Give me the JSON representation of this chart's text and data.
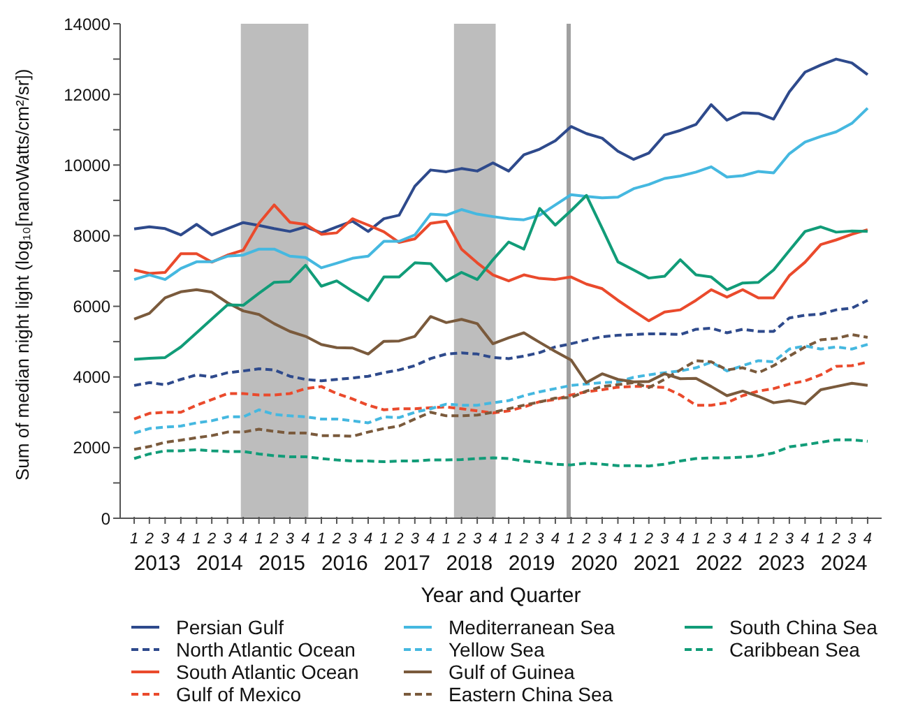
{
  "chart_data": {
    "type": "line",
    "xlabel": "Year and Quarter",
    "ylabel": "Sum of median night light (log₁₀[nanoWatts/cm²/sr])",
    "x": [
      "2013-02-15",
      "2013-05-15",
      "2013-08-15",
      "2013-11-15",
      "2014-02-15",
      "2014-05-15",
      "2014-08-15",
      "2014-11-15",
      "2015-02-15",
      "2015-05-15",
      "2015-08-15",
      "2015-11-15",
      "2016-02-15",
      "2016-05-15",
      "2016-08-15",
      "2016-11-15",
      "2017-02-15",
      "2017-05-15",
      "2017-08-15",
      "2017-11-15",
      "2018-02-15",
      "2018-05-15",
      "2018-08-15",
      "2018-11-15",
      "2019-02-15",
      "2019-05-15",
      "2019-08-15",
      "2019-11-15",
      "2020-02-15",
      "2020-05-15",
      "2020-08-15",
      "2020-11-15",
      "2021-02-15",
      "2021-05-15",
      "2021-08-15",
      "2021-11-15",
      "2022-02-15",
      "2022-05-15",
      "2022-08-15",
      "2022-11-15",
      "2023-02-15",
      "2023-05-15",
      "2023-08-15",
      "2023-11-15",
      "2024-02-15",
      "2024-05-15",
      "2024-08-15",
      "2024-11-15"
    ],
    "xlim": [
      "2012-11-25",
      "2025-02-05"
    ],
    "xticks": [
      {
        "value": "2013-02-15",
        "label": "1"
      },
      {
        "value": "2013-05-15",
        "label": "2"
      },
      {
        "value": "2013-08-15",
        "label": "3"
      },
      {
        "value": "2013-11-15",
        "label": "4"
      },
      {
        "value": "2014-02-15",
        "label": "1"
      },
      {
        "value": "2014-05-15",
        "label": "2"
      },
      {
        "value": "2014-08-15",
        "label": "3"
      },
      {
        "value": "2014-11-15",
        "label": "4"
      },
      {
        "value": "2015-02-15",
        "label": "1"
      },
      {
        "value": "2015-05-15",
        "label": "2"
      },
      {
        "value": "2015-08-15",
        "label": "3"
      },
      {
        "value": "2015-11-15",
        "label": "4"
      },
      {
        "value": "2016-02-15",
        "label": "1"
      },
      {
        "value": "2016-05-15",
        "label": "2"
      },
      {
        "value": "2016-08-15",
        "label": "3"
      },
      {
        "value": "2016-11-15",
        "label": "4"
      },
      {
        "value": "2017-02-15",
        "label": "1"
      },
      {
        "value": "2017-05-15",
        "label": "2"
      },
      {
        "value": "2017-08-15",
        "label": "3"
      },
      {
        "value": "2017-11-15",
        "label": "4"
      },
      {
        "value": "2018-02-15",
        "label": "1"
      },
      {
        "value": "2018-05-15",
        "label": "2"
      },
      {
        "value": "2018-08-15",
        "label": "3"
      },
      {
        "value": "2018-11-15",
        "label": "4"
      },
      {
        "value": "2019-02-15",
        "label": "1"
      },
      {
        "value": "2019-05-15",
        "label": "2"
      },
      {
        "value": "2019-08-15",
        "label": "3"
      },
      {
        "value": "2019-11-15",
        "label": "4"
      },
      {
        "value": "2020-02-15",
        "label": "1"
      },
      {
        "value": "2020-05-15",
        "label": "2"
      },
      {
        "value": "2020-08-15",
        "label": "3"
      },
      {
        "value": "2020-11-15",
        "label": "4"
      },
      {
        "value": "2021-02-15",
        "label": "1"
      },
      {
        "value": "2021-05-15",
        "label": "2"
      },
      {
        "value": "2021-08-15",
        "label": "3"
      },
      {
        "value": "2021-11-15",
        "label": "4"
      },
      {
        "value": "2022-02-15",
        "label": "1"
      },
      {
        "value": "2022-05-15",
        "label": "2"
      },
      {
        "value": "2022-08-15",
        "label": "3"
      },
      {
        "value": "2022-11-15",
        "label": "4"
      },
      {
        "value": "2023-02-15",
        "label": "1"
      },
      {
        "value": "2023-05-15",
        "label": "2"
      },
      {
        "value": "2023-08-15",
        "label": "3"
      },
      {
        "value": "2023-11-15",
        "label": "4"
      },
      {
        "value": "2024-02-15",
        "label": "1"
      },
      {
        "value": "2024-05-15",
        "label": "2"
      },
      {
        "value": "2024-08-15",
        "label": "3"
      },
      {
        "value": "2024-11-15",
        "label": "4"
      }
    ],
    "annotations": [
      "2013",
      "2014",
      "2015",
      "2016",
      "2017",
      "2018",
      "2019",
      "2020",
      "2021",
      "2022",
      "2023",
      "2024"
    ],
    "ylim": [
      0,
      14000
    ],
    "yticks": [
      0,
      {
        "value": 1000,
        "label": null
      },
      2000,
      {
        "value": 3000,
        "label": null
      },
      4000,
      {
        "value": 5000,
        "label": null
      },
      6000,
      {
        "value": 7000,
        "label": null
      },
      8000,
      {
        "value": 9000,
        "label": null
      },
      10000,
      {
        "value": 11000,
        "label": null
      },
      12000,
      {
        "value": 13000,
        "label": null
      },
      14000
    ],
    "bands": [
      {
        "axis": "x",
        "from": "2014-11-01",
        "to": "2015-12-01",
        "color": "#bdbdbd"
      },
      {
        "axis": "x",
        "from": "2018-04-01",
        "to": "2018-12-01",
        "color": "#bdbdbd"
      }
    ],
    "ref_lines": [
      {
        "axis": "x",
        "value": "2020-02-01",
        "color": "#a0a0a0"
      }
    ],
    "legend": "bottom",
    "series": [
      {
        "name": "Persian Gulf",
        "color": "#2e4a8c",
        "line_style": "solid",
        "values": [
          8190,
          8250,
          8200,
          8020,
          8320,
          8020,
          8200,
          8370,
          8290,
          8200,
          8120,
          8250,
          8080,
          8250,
          8410,
          8120,
          8480,
          8580,
          9400,
          9860,
          9810,
          9900,
          9830,
          10060,
          9830,
          10290,
          10450,
          10690,
          11090,
          10890,
          10760,
          10390,
          10160,
          10340,
          10850,
          10980,
          11150,
          11710,
          11270,
          11480,
          11460,
          11300,
          12070,
          12630,
          12830,
          13000,
          12890,
          12560
        ]
      },
      {
        "name": "North Atlantic Ocean",
        "color": "#2e4a8c",
        "line_style": "dashed",
        "values": [
          3760,
          3840,
          3780,
          3930,
          4060,
          4000,
          4120,
          4170,
          4230,
          4200,
          4020,
          3930,
          3890,
          3930,
          3970,
          4020,
          4120,
          4200,
          4320,
          4520,
          4650,
          4680,
          4650,
          4550,
          4520,
          4590,
          4690,
          4850,
          4940,
          5050,
          5140,
          5180,
          5200,
          5220,
          5220,
          5200,
          5350,
          5380,
          5250,
          5350,
          5290,
          5290,
          5670,
          5750,
          5780,
          5900,
          5950,
          6170
        ]
      },
      {
        "name": "South Atlantic Ocean",
        "color": "#ea4a2c",
        "line_style": "solid",
        "values": [
          7030,
          6930,
          6960,
          7490,
          7490,
          7250,
          7450,
          7590,
          8350,
          8870,
          8380,
          8320,
          8040,
          8080,
          8480,
          8300,
          8110,
          7810,
          7910,
          8350,
          8410,
          7620,
          7230,
          6890,
          6720,
          6890,
          6790,
          6760,
          6830,
          6630,
          6500,
          6170,
          5870,
          5590,
          5840,
          5900,
          6170,
          6470,
          6260,
          6470,
          6240,
          6240,
          6870,
          7250,
          7750,
          7880,
          8040,
          8170
        ]
      },
      {
        "name": "Gulf of Mexico",
        "color": "#ea4a2c",
        "line_style": "dashed",
        "values": [
          2810,
          2970,
          3000,
          3000,
          3200,
          3360,
          3530,
          3530,
          3490,
          3490,
          3530,
          3670,
          3730,
          3530,
          3380,
          3200,
          3070,
          3100,
          3100,
          3130,
          3150,
          3100,
          3040,
          2980,
          3040,
          3150,
          3300,
          3360,
          3490,
          3580,
          3640,
          3710,
          3730,
          3730,
          3700,
          3490,
          3200,
          3200,
          3270,
          3470,
          3600,
          3670,
          3800,
          3890,
          4060,
          4300,
          4320,
          4420
        ]
      },
      {
        "name": "Mediterranean Sea",
        "color": "#45b8e0",
        "line_style": "solid",
        "values": [
          6760,
          6890,
          6760,
          7070,
          7260,
          7260,
          7420,
          7450,
          7620,
          7620,
          7420,
          7380,
          7090,
          7220,
          7360,
          7420,
          7840,
          7840,
          8020,
          8610,
          8580,
          8740,
          8610,
          8540,
          8480,
          8450,
          8580,
          8870,
          9160,
          9110,
          9070,
          9090,
          9330,
          9450,
          9620,
          9690,
          9800,
          9950,
          9660,
          9700,
          9820,
          9780,
          10320,
          10650,
          10810,
          10940,
          11180,
          11610
        ]
      },
      {
        "name": "Yellow Sea",
        "color": "#45b8e0",
        "line_style": "dashed",
        "values": [
          2410,
          2540,
          2580,
          2610,
          2700,
          2760,
          2870,
          2870,
          3070,
          2940,
          2900,
          2870,
          2810,
          2810,
          2760,
          2700,
          2870,
          2850,
          3000,
          3100,
          3230,
          3200,
          3200,
          3270,
          3330,
          3470,
          3580,
          3670,
          3760,
          3800,
          3840,
          3860,
          3990,
          4060,
          4120,
          4170,
          4260,
          4420,
          4170,
          4320,
          4460,
          4430,
          4790,
          4880,
          4790,
          4850,
          4790,
          4920
        ]
      },
      {
        "name": "Gulf of Guinea",
        "color": "#7a5a3c",
        "line_style": "solid",
        "values": [
          5640,
          5800,
          6240,
          6410,
          6470,
          6400,
          6100,
          5870,
          5770,
          5510,
          5290,
          5150,
          4920,
          4830,
          4820,
          4650,
          5010,
          5020,
          5150,
          5710,
          5540,
          5630,
          5510,
          4940,
          5110,
          5250,
          4980,
          4720,
          4480,
          3840,
          4090,
          3930,
          3860,
          3870,
          4090,
          3950,
          3960,
          3730,
          3470,
          3600,
          3450,
          3270,
          3330,
          3240,
          3640,
          3730,
          3820,
          3760
        ]
      },
      {
        "name": "Eastern China Sea",
        "color": "#7a5a3c",
        "line_style": "dashed",
        "values": [
          1950,
          2030,
          2150,
          2210,
          2280,
          2340,
          2440,
          2440,
          2520,
          2460,
          2410,
          2410,
          2340,
          2340,
          2320,
          2440,
          2540,
          2610,
          2810,
          3000,
          2900,
          2900,
          2920,
          3000,
          3100,
          3200,
          3290,
          3400,
          3420,
          3600,
          3730,
          3780,
          3840,
          3700,
          3930,
          4200,
          4460,
          4430,
          4200,
          4260,
          4120,
          4320,
          4590,
          4850,
          5050,
          5090,
          5200,
          5120
        ]
      },
      {
        "name": "South China Sea",
        "color": "#119c78",
        "line_style": "solid",
        "values": [
          4500,
          4530,
          4550,
          4850,
          5250,
          5640,
          6040,
          6030,
          6370,
          6680,
          6700,
          7160,
          6570,
          6720,
          6430,
          6160,
          6830,
          6830,
          7230,
          7210,
          6720,
          6960,
          6760,
          7320,
          7820,
          7620,
          8770,
          8300,
          8710,
          9140,
          8210,
          7260,
          7030,
          6800,
          6850,
          7320,
          6890,
          6830,
          6470,
          6660,
          6680,
          7030,
          7580,
          8120,
          8250,
          8100,
          8130,
          8120
        ]
      },
      {
        "name": "Caribbean Sea",
        "color": "#119c78",
        "line_style": "dashed",
        "values": [
          1690,
          1820,
          1910,
          1910,
          1940,
          1910,
          1890,
          1890,
          1820,
          1770,
          1740,
          1740,
          1690,
          1650,
          1620,
          1620,
          1600,
          1620,
          1620,
          1650,
          1650,
          1660,
          1690,
          1710,
          1690,
          1620,
          1580,
          1530,
          1510,
          1560,
          1530,
          1490,
          1490,
          1480,
          1530,
          1620,
          1690,
          1710,
          1710,
          1730,
          1770,
          1850,
          2020,
          2080,
          2150,
          2220,
          2220,
          2180
        ]
      }
    ]
  }
}
